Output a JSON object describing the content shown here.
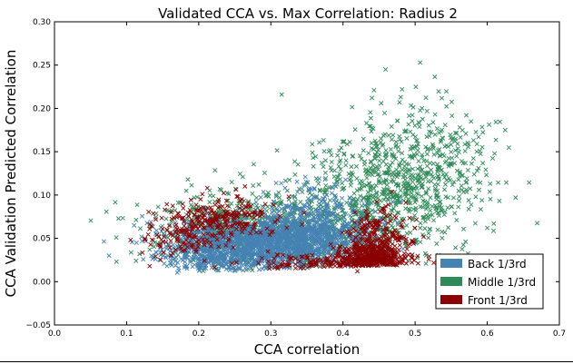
{
  "chart_data": {
    "type": "scatter",
    "title": "Validated CCA vs. Max Correlation: Radius 2",
    "xlabel": "CCA correlation",
    "ylabel": "CCA Validation Predicted Correlation",
    "xlim": [
      0.0,
      0.7
    ],
    "ylim": [
      -0.05,
      0.3
    ],
    "xticks": [
      "0.0",
      "0.1",
      "0.2",
      "0.3",
      "0.4",
      "0.5",
      "0.6",
      "0.7"
    ],
    "yticks": [
      "−0.05",
      "0.00",
      "0.05",
      "0.10",
      "0.15",
      "0.20",
      "0.25",
      "0.30"
    ],
    "grid": false,
    "legend_position": "lower-right",
    "marker": "x",
    "series": [
      {
        "name": "Middle 1/3rd",
        "color": "#2e8b57",
        "regions": [
          {
            "cx": 0.33,
            "cy": 0.06,
            "sx": 0.08,
            "sy": 0.025,
            "n": 700
          },
          {
            "cx": 0.47,
            "cy": 0.11,
            "sx": 0.06,
            "sy": 0.035,
            "n": 650
          },
          {
            "cx": 0.52,
            "cy": 0.15,
            "sx": 0.04,
            "sy": 0.035,
            "n": 160
          },
          {
            "cx": 0.22,
            "cy": 0.06,
            "sx": 0.05,
            "sy": 0.02,
            "n": 220
          }
        ],
        "points": [
          [
            0.086,
            0.023
          ],
          [
            0.113,
            0.024
          ],
          [
            0.118,
            0.032
          ],
          [
            0.132,
            0.037
          ],
          [
            0.315,
            0.216
          ],
          [
            0.459,
            0.245
          ],
          [
            0.507,
            0.253
          ],
          [
            0.482,
            0.222
          ],
          [
            0.443,
            0.221
          ],
          [
            0.501,
            0.225
          ],
          [
            0.48,
            0.213
          ],
          [
            0.453,
            0.206
          ],
          [
            0.588,
            0.131
          ],
          [
            0.609,
            0.067
          ],
          [
            0.6,
            0.062
          ],
          [
            0.584,
            0.098
          ]
        ]
      },
      {
        "name": "Back 1/3rd",
        "color": "#4682b4",
        "regions": [
          {
            "cx": 0.3,
            "cy": 0.045,
            "sx": 0.07,
            "sy": 0.015,
            "n": 1200
          },
          {
            "cx": 0.36,
            "cy": 0.065,
            "sx": 0.04,
            "sy": 0.02,
            "n": 450
          },
          {
            "cx": 0.24,
            "cy": 0.035,
            "sx": 0.045,
            "sy": 0.012,
            "n": 400
          }
        ],
        "points": [
          [
            0.14,
            0.026
          ],
          [
            0.156,
            0.018
          ],
          [
            0.367,
            0.119
          ],
          [
            0.392,
            0.112
          ],
          [
            0.412,
            0.094
          ],
          [
            0.349,
            0.115
          ],
          [
            0.375,
            0.118
          ]
        ]
      },
      {
        "name": "Front 1/3rd",
        "color": "#8b0000",
        "regions": [
          {
            "cx": 0.44,
            "cy": 0.028,
            "sx": 0.022,
            "sy": 0.008,
            "n": 320
          },
          {
            "cx": 0.45,
            "cy": 0.05,
            "sx": 0.02,
            "sy": 0.018,
            "n": 220
          },
          {
            "cx": 0.23,
            "cy": 0.072,
            "sx": 0.035,
            "sy": 0.012,
            "n": 240
          },
          {
            "cx": 0.38,
            "cy": 0.02,
            "sx": 0.06,
            "sy": 0.006,
            "n": 160
          },
          {
            "cx": 0.17,
            "cy": 0.05,
            "sx": 0.025,
            "sy": 0.01,
            "n": 80
          }
        ],
        "points": [
          [
            0.132,
            0.018
          ],
          [
            0.147,
            0.025
          ],
          [
            0.205,
            0.101
          ],
          [
            0.233,
            0.087
          ],
          [
            0.264,
            0.11
          ],
          [
            0.325,
            0.098
          ],
          [
            0.443,
            0.022
          ],
          [
            0.475,
            0.019
          ],
          [
            0.42,
            0.012
          ],
          [
            0.46,
            0.035
          ]
        ]
      }
    ],
    "legend_order": [
      "Back 1/3rd",
      "Middle 1/3rd",
      "Front 1/3rd"
    ]
  }
}
